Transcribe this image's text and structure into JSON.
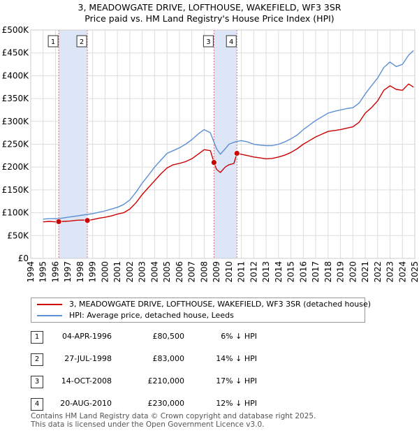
{
  "title_line1": "3, MEADOWGATE DRIVE, LOFTHOUSE, WAKEFIELD, WF3 3SR",
  "title_line2": "Price paid vs. HM Land Registry's House Price Index (HPI)",
  "colors": {
    "property": "#cc0000",
    "hpi": "#5b8fd4",
    "band": "#dde6f6",
    "marker_line": "#e07070",
    "grid": "#dddddd"
  },
  "chart_data": {
    "type": "line",
    "title": "3, MEADOWGATE DRIVE, LOFTHOUSE, WAKEFIELD, WF3 3SR — Price paid vs. HM Land Registry's House Price Index (HPI)",
    "xlabel": "",
    "ylabel": "",
    "xlim": [
      1994,
      2025
    ],
    "ylim": [
      0,
      500000
    ],
    "grid": true,
    "legend_placement": "below",
    "y_ticks": [
      {
        "value": 0,
        "label": "£0"
      },
      {
        "value": 50000,
        "label": "£50K"
      },
      {
        "value": 100000,
        "label": "£100K"
      },
      {
        "value": 150000,
        "label": "£150K"
      },
      {
        "value": 200000,
        "label": "£200K"
      },
      {
        "value": 250000,
        "label": "£250K"
      },
      {
        "value": 300000,
        "label": "£300K"
      },
      {
        "value": 350000,
        "label": "£350K"
      },
      {
        "value": 400000,
        "label": "£400K"
      },
      {
        "value": 450000,
        "label": "£450K"
      },
      {
        "value": 500000,
        "label": "£500K"
      }
    ],
    "x_ticks": [
      "1994",
      "1995",
      "1996",
      "1997",
      "1998",
      "1999",
      "2000",
      "2001",
      "2002",
      "2003",
      "2004",
      "2005",
      "2006",
      "2007",
      "2008",
      "2009",
      "2010",
      "2011",
      "2012",
      "2013",
      "2014",
      "2015",
      "2016",
      "2017",
      "2018",
      "2019",
      "2020",
      "2021",
      "2022",
      "2023",
      "2024",
      "2025"
    ],
    "shaded_periods": [
      [
        1996.26,
        1998.57
      ],
      [
        2008.79,
        2010.64
      ]
    ],
    "series": [
      {
        "name": "3, MEADOWGATE DRIVE, LOFTHOUSE, WAKEFIELD, WF3 3SR (detached house)",
        "color": "#cc0000",
        "x": [
          1995.0,
          1995.5,
          1996.0,
          1996.26,
          1996.7,
          1997.2,
          1997.7,
          1998.2,
          1998.57,
          1999.0,
          1999.5,
          2000.0,
          2000.5,
          2001.0,
          2001.5,
          2002.0,
          2002.5,
          2003.0,
          2003.5,
          2004.0,
          2004.5,
          2005.0,
          2005.5,
          2006.0,
          2006.5,
          2007.0,
          2007.5,
          2008.0,
          2008.5,
          2008.79,
          2009.0,
          2009.3,
          2009.7,
          2010.0,
          2010.4,
          2010.64,
          2011.0,
          2011.5,
          2012.0,
          2012.5,
          2013.0,
          2013.5,
          2014.0,
          2014.5,
          2015.0,
          2015.5,
          2016.0,
          2016.5,
          2017.0,
          2017.5,
          2018.0,
          2018.5,
          2019.0,
          2019.5,
          2020.0,
          2020.5,
          2021.0,
          2021.5,
          2022.0,
          2022.5,
          2023.0,
          2023.5,
          2024.0,
          2024.5,
          2024.9
        ],
        "values": [
          80000,
          81000,
          80000,
          80500,
          81000,
          82000,
          83500,
          84000,
          83000,
          85000,
          88000,
          90000,
          93000,
          97000,
          100000,
          108000,
          122000,
          140000,
          155000,
          170000,
          185000,
          198000,
          205000,
          208000,
          212000,
          218000,
          228000,
          238000,
          236000,
          210000,
          195000,
          188000,
          200000,
          205000,
          208000,
          230000,
          228000,
          225000,
          222000,
          220000,
          218000,
          219000,
          222000,
          226000,
          232000,
          240000,
          250000,
          258000,
          266000,
          272000,
          278000,
          280000,
          282000,
          285000,
          288000,
          298000,
          318000,
          330000,
          345000,
          368000,
          378000,
          370000,
          368000,
          382000,
          375000
        ]
      },
      {
        "name": "HPI: Average price, detached house, Leeds",
        "color": "#5b8fd4",
        "x": [
          1995.0,
          1995.5,
          1996.0,
          1996.5,
          1997.0,
          1997.5,
          1998.0,
          1998.5,
          1999.0,
          1999.5,
          2000.0,
          2000.5,
          2001.0,
          2001.5,
          2002.0,
          2002.5,
          2003.0,
          2003.5,
          2004.0,
          2004.5,
          2005.0,
          2005.5,
          2006.0,
          2006.5,
          2007.0,
          2007.5,
          2008.0,
          2008.5,
          2009.0,
          2009.3,
          2009.7,
          2010.0,
          2010.5,
          2011.0,
          2011.5,
          2012.0,
          2012.5,
          2013.0,
          2013.5,
          2014.0,
          2014.5,
          2015.0,
          2015.5,
          2016.0,
          2016.5,
          2017.0,
          2017.5,
          2018.0,
          2018.5,
          2019.0,
          2019.5,
          2020.0,
          2020.5,
          2021.0,
          2021.5,
          2022.0,
          2022.5,
          2023.0,
          2023.5,
          2024.0,
          2024.5,
          2024.9
        ],
        "values": [
          86000,
          87000,
          87000,
          88000,
          90000,
          92000,
          94000,
          96000,
          98000,
          101000,
          104000,
          108000,
          112000,
          118000,
          128000,
          145000,
          165000,
          182000,
          200000,
          215000,
          230000,
          236000,
          242000,
          250000,
          260000,
          272000,
          282000,
          275000,
          240000,
          228000,
          240000,
          250000,
          255000,
          258000,
          255000,
          250000,
          248000,
          247000,
          247000,
          250000,
          255000,
          262000,
          270000,
          282000,
          292000,
          302000,
          310000,
          318000,
          322000,
          325000,
          328000,
          330000,
          340000,
          360000,
          378000,
          395000,
          418000,
          430000,
          420000,
          425000,
          445000,
          455000
        ]
      }
    ],
    "transactions": [
      {
        "id": "1",
        "x": 1996.26,
        "value": 80500
      },
      {
        "id": "2",
        "x": 1998.57,
        "value": 83000
      },
      {
        "id": "3",
        "x": 2008.79,
        "value": 210000
      },
      {
        "id": "4",
        "x": 2010.64,
        "value": 230000
      }
    ]
  },
  "legend": {
    "property": "3, MEADOWGATE DRIVE, LOFTHOUSE, WAKEFIELD, WF3 3SR (detached house)",
    "hpi": "HPI: Average price, detached house, Leeds"
  },
  "table": [
    {
      "num": "1",
      "date": "04-APR-1996",
      "price": "£80,500",
      "hpi": "6% ↓ HPI"
    },
    {
      "num": "2",
      "date": "27-JUL-1998",
      "price": "£83,000",
      "hpi": "14% ↓ HPI"
    },
    {
      "num": "3",
      "date": "14-OCT-2008",
      "price": "£210,000",
      "hpi": "17% ↓ HPI"
    },
    {
      "num": "4",
      "date": "20-AUG-2010",
      "price": "£230,000",
      "hpi": "12% ↓ HPI"
    }
  ],
  "footer_line1": "Contains HM Land Registry data © Crown copyright and database right 2025.",
  "footer_line2": "This data is licensed under the Open Government Licence v3.0."
}
